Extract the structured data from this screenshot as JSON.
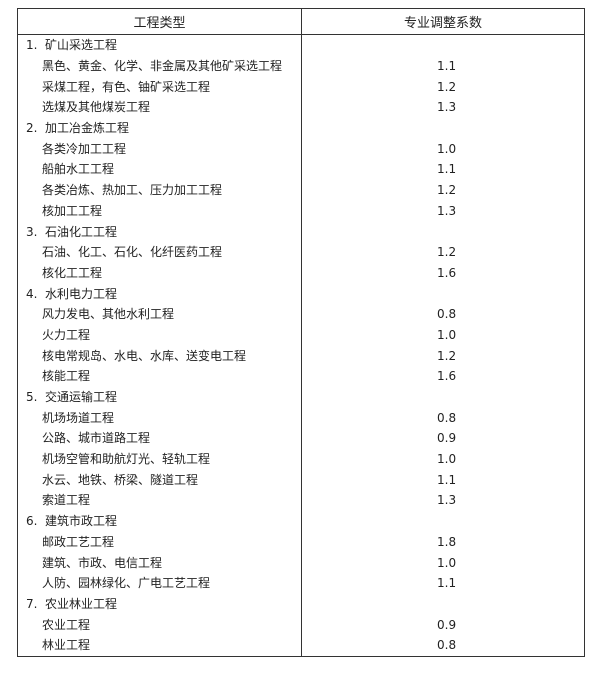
{
  "table": {
    "header": [
      "工程类型",
      "专业调整系数"
    ],
    "sections": [
      {
        "number": "1.",
        "title": "矿山采选工程",
        "items": [
          {
            "name": "黑色、黄金、化学、非金属及其他矿采选工程",
            "value": "1.1"
          },
          {
            "name": "采煤工程，有色、铀矿采选工程",
            "value": "1.2"
          },
          {
            "name": "选煤及其他煤炭工程",
            "value": "1.3"
          }
        ]
      },
      {
        "number": "2.",
        "title": "加工冶金炼工程",
        "items": [
          {
            "name": "各类冷加工工程",
            "value": "1.0"
          },
          {
            "name": "船舶水工工程",
            "value": "1.1"
          },
          {
            "name": "各类冶炼、热加工、压力加工工程",
            "value": "1.2"
          },
          {
            "name": "核加工工程",
            "value": "1.3"
          }
        ]
      },
      {
        "number": "3.",
        "title": "石油化工工程",
        "items": [
          {
            "name": "石油、化工、石化、化纤医药工程",
            "value": "1.2"
          },
          {
            "name": "核化工工程",
            "value": "1.6"
          }
        ]
      },
      {
        "number": "4.",
        "title": "水利电力工程",
        "items": [
          {
            "name": "风力发电、其他水利工程",
            "value": "0.8"
          },
          {
            "name": "火力工程",
            "value": "1.0"
          },
          {
            "name": "核电常规岛、水电、水库、送变电工程",
            "value": "1.2"
          },
          {
            "name": "核能工程",
            "value": "1.6"
          }
        ]
      },
      {
        "number": "5.",
        "title": "交通运输工程",
        "items": [
          {
            "name": "机场场道工程",
            "value": "0.8"
          },
          {
            "name": "公路、城市道路工程",
            "value": "0.9"
          },
          {
            "name": "机场空管和助航灯光、轻轨工程",
            "value": "1.0"
          },
          {
            "name": "水云、地铁、桥梁、隧道工程",
            "value": "1.1"
          },
          {
            "name": "索道工程",
            "value": "1.3"
          }
        ]
      },
      {
        "number": "6.",
        "title": "建筑市政工程",
        "items": [
          {
            "name": "邮政工艺工程",
            "value": "1.8"
          },
          {
            "name": "建筑、市政、电信工程",
            "value": "1.0"
          },
          {
            "name": "人防、园林绿化、广电工艺工程",
            "value": "1.1"
          }
        ]
      },
      {
        "number": "7.",
        "title": "农业林业工程",
        "items": [
          {
            "name": "农业工程",
            "value": "0.9"
          },
          {
            "name": "林业工程",
            "value": "0.8"
          }
        ]
      }
    ]
  }
}
